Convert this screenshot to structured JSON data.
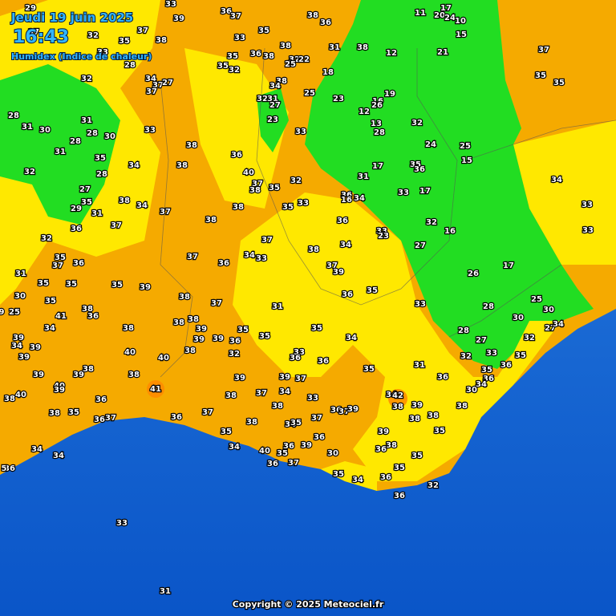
{
  "header": {
    "date": "Jeudi 19 juin 2025",
    "time": "16:43",
    "product": "Humidex (Indice de chaleur)"
  },
  "stations": [
    29,
    33,
    36,
    37,
    39,
    38,
    36,
    11,
    17,
    20,
    24,
    10,
    15,
    37,
    32,
    35,
    37,
    38,
    33,
    35,
    38,
    31,
    38,
    12,
    21,
    37,
    33,
    28,
    35,
    36,
    38,
    32,
    22,
    25,
    35,
    32,
    18,
    35,
    35,
    32,
    34,
    37,
    27,
    38,
    34,
    37,
    25,
    19,
    23,
    32,
    31,
    27,
    16,
    12,
    26,
    28,
    31,
    31,
    30,
    28,
    33,
    23,
    13,
    28,
    32,
    33,
    30,
    28,
    31,
    38,
    36,
    24,
    25,
    35,
    34,
    38,
    17,
    15,
    35,
    36,
    32,
    28,
    40,
    37,
    38,
    35,
    32,
    31,
    34,
    27,
    35,
    38,
    34,
    37,
    38,
    38,
    35,
    33,
    36,
    34,
    16,
    33,
    17,
    33,
    29,
    31,
    37,
    36,
    33,
    23,
    32,
    16,
    33,
    36,
    32,
    37,
    34,
    27,
    38,
    35,
    37,
    36,
    37,
    36,
    34,
    33,
    37,
    39,
    17,
    31,
    26,
    35,
    35,
    35,
    39,
    35,
    36,
    38,
    37,
    31,
    33,
    25,
    30,
    35,
    28,
    30,
    9,
    25,
    41,
    38,
    36,
    38,
    38,
    30,
    38,
    34,
    39,
    35,
    35,
    39,
    39,
    39,
    36,
    35,
    34,
    28,
    27,
    34,
    32,
    27,
    34,
    39,
    40,
    38,
    32,
    33,
    36,
    33,
    35,
    32,
    39,
    40,
    36,
    35,
    31,
    36,
    35,
    39,
    39,
    38,
    38,
    39,
    39,
    37,
    36,
    36,
    41,
    40,
    40,
    39,
    38,
    38,
    37,
    34,
    33,
    34,
    42,
    39,
    30,
    34,
    36,
    38,
    38,
    38,
    35,
    37,
    36,
    37,
    36,
    38,
    37,
    36,
    37,
    39,
    38,
    38,
    38,
    34,
    35,
    35,
    39,
    35,
    36,
    38,
    34,
    39,
    36,
    36,
    35,
    40,
    35,
    34,
    36,
    34,
    30,
    36,
    37,
    35,
    35,
    34,
    36,
    32,
    36,
    33,
    31,
    5
  ],
  "footer": {
    "copyright": "Copyright © 2025 Meteociel.fr"
  }
}
